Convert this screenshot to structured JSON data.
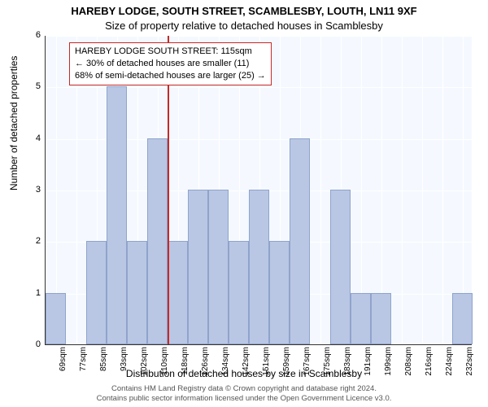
{
  "titles": {
    "line1": "HAREBY LODGE, SOUTH STREET, SCAMBLESBY, LOUTH, LN11 9XF",
    "line2": "Size of property relative to detached houses in Scamblesby"
  },
  "axes": {
    "ylabel": "Number of detached properties",
    "xlabel": "Distribution of detached houses by size in Scamblesby",
    "ylim": [
      0,
      6
    ],
    "yticks": [
      0,
      1,
      2,
      3,
      4,
      5,
      6
    ],
    "xlim_sqm": [
      65,
      240
    ]
  },
  "chart": {
    "type": "histogram",
    "bin_width_sqm": 8.42,
    "bar_color": "#b9c7e4",
    "bar_border": "#8fa3cc",
    "plot_bg": "#f5f9ff",
    "grid_color": "#ffffff",
    "categories": [
      "69sqm",
      "77sqm",
      "85sqm",
      "93sqm",
      "102sqm",
      "110sqm",
      "118sqm",
      "126sqm",
      "134sqm",
      "142sqm",
      "151sqm",
      "159sqm",
      "167sqm",
      "175sqm",
      "183sqm",
      "191sqm",
      "199sqm",
      "208sqm",
      "216sqm",
      "224sqm",
      "232sqm"
    ],
    "values": [
      1,
      0,
      2,
      5,
      2,
      4,
      2,
      3,
      3,
      2,
      3,
      2,
      4,
      0,
      3,
      1,
      1,
      0,
      0,
      0,
      1
    ],
    "reference_line": {
      "sqm": 115,
      "color": "#c62828",
      "width": 2
    }
  },
  "infobox": {
    "line1": "HAREBY LODGE SOUTH STREET: 115sqm",
    "line2": "← 30% of detached houses are smaller (11)",
    "line3": "68% of semi-detached houses are larger (25) →",
    "border_color": "#c62828",
    "bg_color": "#ffffff",
    "fontsize": 11
  },
  "footer": {
    "line1": "Contains HM Land Registry data © Crown copyright and database right 2024.",
    "line2": "Contains public sector information licensed under the Open Government Licence v3.0."
  },
  "typography": {
    "title_fontsize": 13,
    "axis_label_fontsize": 12,
    "tick_fontsize": 11,
    "footer_fontsize": 9.5,
    "font_family": "Arial"
  }
}
